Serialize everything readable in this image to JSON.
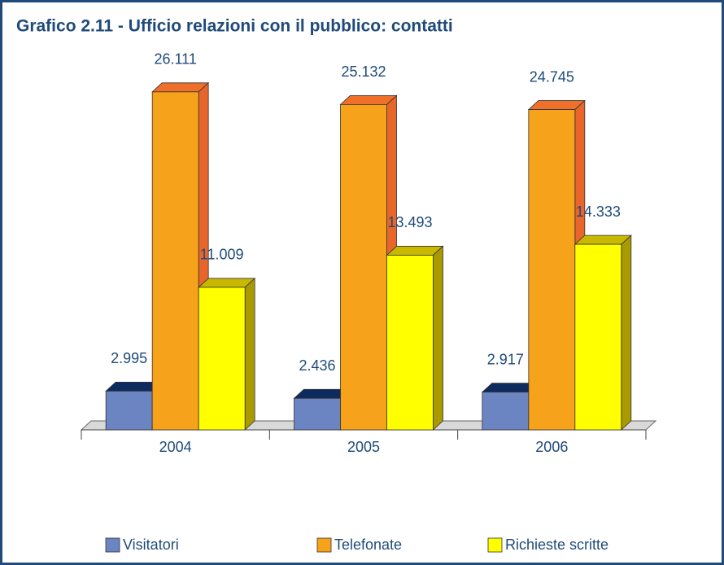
{
  "chart_data": {
    "type": "bar3d",
    "title": "Grafico 2.11 - Ufficio relazioni con il pubblico: contatti",
    "categories": [
      "2004",
      "2005",
      "2006"
    ],
    "series": [
      {
        "name": "Visitatori",
        "color": "#6b85c2",
        "values": [
          2995,
          2436,
          2917
        ],
        "value_labels": [
          "2.995",
          "2.436",
          "2.917"
        ]
      },
      {
        "name": "Telefonate",
        "color": "#f7a21b",
        "values": [
          26111,
          25132,
          24745
        ],
        "value_labels": [
          "26.111",
          "25.132",
          "24.745"
        ]
      },
      {
        "name": "Richieste scritte",
        "color": "#ffff00",
        "values": [
          11009,
          13493,
          14333
        ],
        "value_labels": [
          "11.009",
          "13.493",
          "14.333"
        ]
      }
    ],
    "legend": "bottom"
  }
}
